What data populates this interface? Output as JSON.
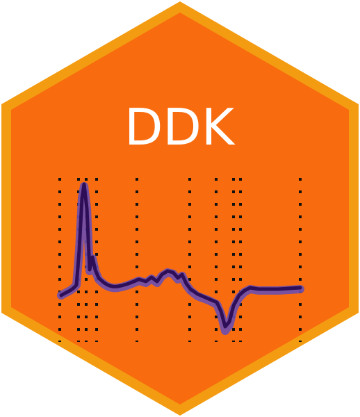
{
  "logo": {
    "title": "DDK",
    "colors": {
      "border": "#F39C12",
      "fill": "#F86B0E",
      "title": "#FFFFFF",
      "trace": "#2E0F57",
      "trace_band": "#6A4FB0",
      "marker": "#111111"
    },
    "icon": "spectrum-trace-with-dotted-markers"
  }
}
